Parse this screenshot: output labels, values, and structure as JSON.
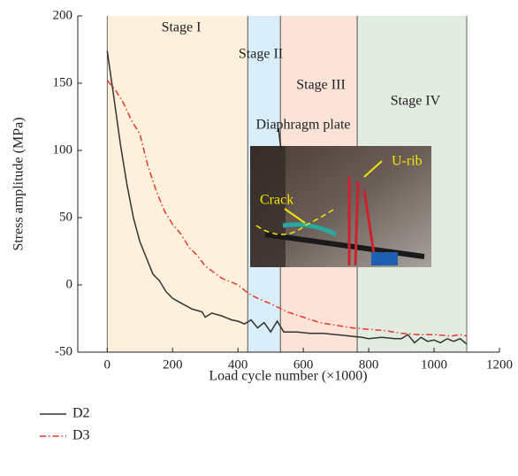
{
  "chart_data": {
    "type": "line",
    "xlabel": "Load cycle number (×1000)",
    "ylabel": "Stress amplitude (MPa)",
    "xlim": [
      -90,
      1200
    ],
    "xticks": [
      0,
      200,
      400,
      600,
      800,
      1000,
      1200
    ],
    "ylim": [
      -50,
      200
    ],
    "yticks": [
      -50,
      0,
      50,
      100,
      150,
      200
    ],
    "grid": false,
    "stages": [
      {
        "label": "Stage I",
        "start": 0,
        "end": 430,
        "color": "#fdf0dc"
      },
      {
        "label": "Stage II",
        "start": 430,
        "end": 530,
        "color": "#d9eef8"
      },
      {
        "label": "Stage III",
        "start": 530,
        "end": 765,
        "color": "#fbe3d8"
      },
      {
        "label": "Stage IV",
        "start": 765,
        "end": 1100,
        "color": "#e3ece0"
      }
    ],
    "annotations": [
      "Diaphragm plate",
      "U-rib",
      "Crack"
    ],
    "series": [
      {
        "name": "D2",
        "color": "#333333",
        "style": "solid",
        "x": [
          0,
          20,
          40,
          60,
          80,
          100,
          120,
          140,
          160,
          180,
          200,
          230,
          260,
          290,
          300,
          320,
          350,
          380,
          400,
          420,
          440,
          460,
          480,
          500,
          520,
          540,
          580,
          620,
          660,
          700,
          740,
          780,
          800,
          840,
          880,
          900,
          920,
          940,
          960,
          980,
          1000,
          1020,
          1040,
          1060,
          1080,
          1100
        ],
        "values": [
          174,
          140,
          105,
          75,
          50,
          32,
          20,
          8,
          3,
          -5,
          -10,
          -14,
          -18,
          -20,
          -24,
          -21,
          -23,
          -26,
          -27,
          -29,
          -26,
          -32,
          -28,
          -35,
          -27,
          -35,
          -35,
          -36,
          -36,
          -37,
          -38,
          -39,
          -40,
          -39,
          -40,
          -40,
          -37,
          -43,
          -39,
          -42,
          -41,
          -43,
          -40,
          -42,
          -40,
          -44
        ]
      },
      {
        "name": "D3",
        "color": "#e8392a",
        "style": "dashdot",
        "x": [
          0,
          25,
          50,
          75,
          100,
          125,
          150,
          175,
          200,
          225,
          250,
          275,
          300,
          350,
          400,
          430,
          460,
          500,
          550,
          600,
          650,
          700,
          750,
          800,
          850,
          900,
          950,
          1000,
          1050,
          1080,
          1100
        ],
        "values": [
          152,
          145,
          135,
          122,
          112,
          88,
          70,
          55,
          45,
          38,
          28,
          22,
          14,
          5,
          0,
          -6,
          -10,
          -14,
          -20,
          -24,
          -28,
          -30,
          -32,
          -33,
          -34,
          -36,
          -37,
          -37,
          -38,
          -37,
          -38
        ]
      }
    ]
  }
}
